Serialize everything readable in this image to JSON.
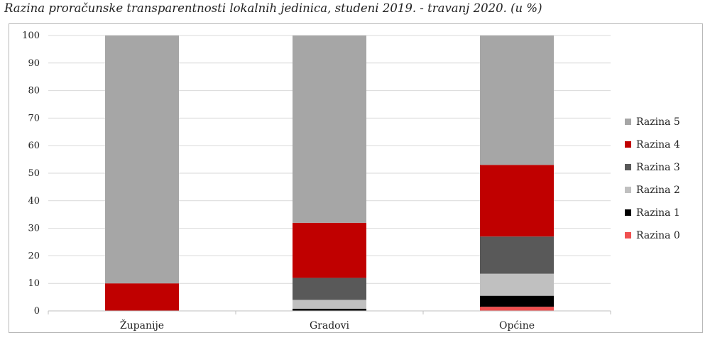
{
  "title": "Razina proračunske transparentnosti lokalnih jedinica, studeni 2019. - travanj 2020. (u %)",
  "chart_data": {
    "type": "bar",
    "stacked": true,
    "categories": [
      "Županije",
      "Gradovi",
      "Općine"
    ],
    "ylim": [
      0,
      100
    ],
    "yticks": [
      "0",
      "10",
      "20",
      "30",
      "40",
      "50",
      "60",
      "70",
      "80",
      "90",
      "100"
    ],
    "grid": true,
    "legend_position": "right",
    "series": [
      {
        "name": "Razina 0",
        "color": "#f05050",
        "values": [
          0,
          0,
          1.5
        ]
      },
      {
        "name": "Razina 1",
        "color": "#000000",
        "values": [
          0,
          0.8,
          4
        ]
      },
      {
        "name": "Razina 2",
        "color": "#c0c0c0",
        "values": [
          0,
          3.2,
          8
        ]
      },
      {
        "name": "Razina 3",
        "color": "#595959",
        "values": [
          0,
          8,
          13.5
        ]
      },
      {
        "name": "Razina 4",
        "color": "#c00000",
        "values": [
          10,
          20,
          26
        ]
      },
      {
        "name": "Razina 5",
        "color": "#a6a6a6",
        "values": [
          90,
          68,
          47
        ]
      }
    ],
    "legend_order": [
      "Razina 5",
      "Razina 4",
      "Razina 3",
      "Razina 2",
      "Razina 1",
      "Razina 0"
    ]
  }
}
